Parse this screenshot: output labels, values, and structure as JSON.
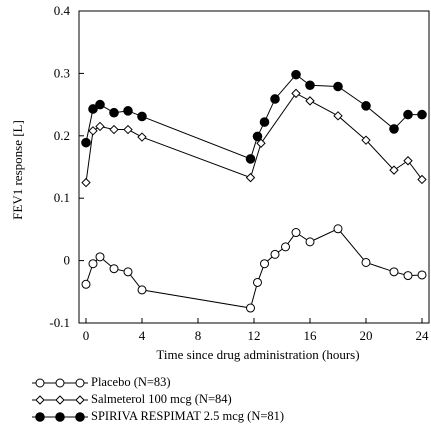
{
  "chart_data": {
    "type": "line",
    "title": "",
    "xlabel": "Time since drug administration (hours)",
    "ylabel": "FEV1 response [L]",
    "xlim": [
      -0.5,
      24.5
    ],
    "ylim": [
      -0.1,
      0.4
    ],
    "xticks": [
      0,
      4,
      8,
      12,
      16,
      20,
      24
    ],
    "yticks": [
      -0.1,
      0,
      0.1,
      0.2,
      0.3,
      0.4
    ],
    "ytick_labels": [
      "-0.1",
      "0",
      "0.1",
      "0.2",
      "0.3",
      "0.4"
    ],
    "grid": false,
    "legend_position": "bottom-left",
    "series": [
      {
        "name": "Placebo (N=83)",
        "marker": "open-circle",
        "color": "#000000",
        "x": [
          0,
          0.5,
          1,
          2,
          3,
          4,
          11.75,
          12.25,
          12.75,
          13.5,
          14.25,
          15,
          16,
          18,
          20,
          22,
          23,
          24
        ],
        "y": [
          -0.038,
          -0.005,
          0.006,
          -0.013,
          -0.018,
          -0.047,
          -0.076,
          -0.035,
          -0.005,
          0.01,
          0.022,
          0.045,
          0.03,
          0.051,
          -0.003,
          -0.018,
          -0.024,
          -0.023
        ]
      },
      {
        "name": "Salmeterol 100 mcg (N=84)",
        "marker": "open-diamond",
        "color": "#000000",
        "x": [
          0,
          0.5,
          1,
          2,
          3,
          4,
          11.75,
          12.5,
          15,
          16,
          18,
          20,
          22,
          23,
          24
        ],
        "y": [
          0.125,
          0.208,
          0.215,
          0.21,
          0.21,
          0.198,
          0.133,
          0.188,
          0.268,
          0.256,
          0.232,
          0.193,
          0.145,
          0.16,
          0.13
        ]
      },
      {
        "name": "SPIRIVA RESPIMAT 2.5 mcg (N=81)",
        "marker": "filled-circle",
        "color": "#000000",
        "x": [
          0,
          0.5,
          1,
          2,
          3,
          4,
          11.75,
          12.25,
          12.75,
          13.5,
          15,
          16,
          18,
          20,
          22,
          23,
          24
        ],
        "y": [
          0.189,
          0.243,
          0.25,
          0.237,
          0.24,
          0.231,
          0.163,
          0.199,
          0.222,
          0.259,
          0.298,
          0.281,
          0.279,
          0.248,
          0.211,
          0.234,
          0.234
        ]
      }
    ]
  }
}
